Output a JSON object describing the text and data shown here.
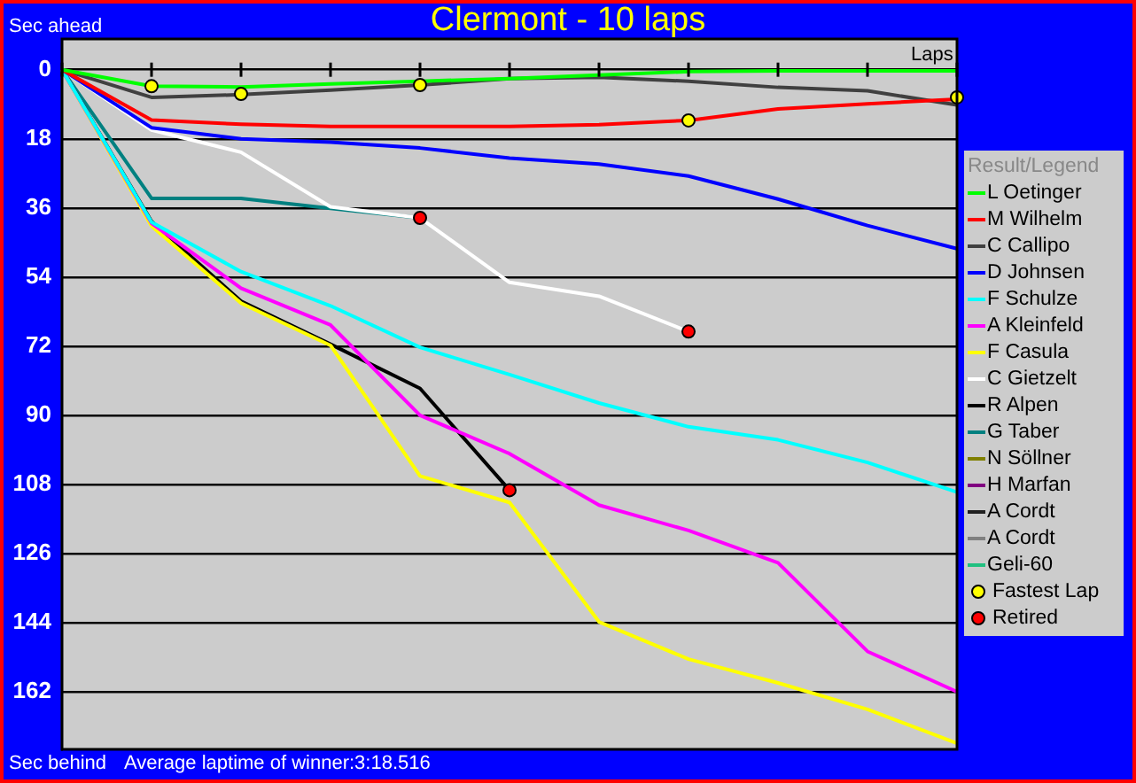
{
  "chart_data": {
    "type": "line",
    "title": "Clermont - 10 laps",
    "xlabel": "Laps",
    "legend_title": "Result/Legend",
    "legend": "right",
    "grid": "y",
    "tick_labels": "y",
    "marker": "none",
    "annotations": [
      "Sec ahead",
      "Sec behind",
      "Average laptime of winner:3:18.516"
    ],
    "categories": [
      null,
      null,
      null,
      null,
      null,
      null,
      null,
      null,
      null,
      null,
      null
    ],
    "ylim": [
      177,
      -8
    ],
    "yticks": [
      0,
      18,
      36,
      54,
      72,
      90,
      108,
      126,
      144,
      162
    ],
    "series": [
      {
        "name": "L Oetinger",
        "color": "#00ff00",
        "values": [
          0,
          4.3,
          4.5,
          3.7,
          3,
          2.3,
          1.4,
          0.5,
          0.3,
          0.3,
          0.3
        ]
      },
      {
        "name": "M Wilhelm",
        "color": "#ff0000",
        "values": [
          0,
          13.1,
          14.2,
          14.8,
          14.8,
          14.8,
          14.3,
          13.2,
          10.2,
          8.9,
          7.7
        ]
      },
      {
        "name": "C Callipo",
        "color": "#404040",
        "values": [
          0,
          7.2,
          6.5,
          5.3,
          4,
          2.3,
          2,
          3,
          4.6,
          5.5,
          9.2
        ]
      },
      {
        "name": "D Johnsen",
        "color": "#0000ff",
        "values": [
          0,
          15.1,
          18,
          18.9,
          20.4,
          23,
          24.6,
          27.7,
          33.7,
          40.6,
          46.6
        ]
      },
      {
        "name": "F Schulze",
        "color": "#00ffff",
        "values": [
          0,
          39.7,
          52.6,
          61.5,
          72.3,
          79.4,
          86.8,
          93,
          96.4,
          102.3,
          110
        ]
      },
      {
        "name": "A Kleinfeld",
        "color": "#ff00ff",
        "values": [
          0,
          40,
          56.9,
          66.5,
          90,
          100,
          113.4,
          120,
          128.4,
          151.5,
          162
        ]
      },
      {
        "name": "F Casula",
        "color": "#ffff00",
        "values": [
          0,
          40.7,
          60.8,
          71.8,
          105.8,
          112.7,
          143.8,
          153.5,
          159.7,
          166.6,
          175.4
        ]
      },
      {
        "name": "C Gietzelt",
        "color": "#ffffff",
        "values": [
          0,
          15.7,
          21.5,
          35.7,
          38.6,
          55.4,
          59,
          68.2,
          null,
          null,
          null
        ]
      },
      {
        "name": "R Alpen",
        "color": "#000000",
        "values": [
          0,
          39.5,
          60.3,
          71.5,
          83,
          109.5,
          null,
          null,
          null,
          null,
          null
        ]
      },
      {
        "name": "G Taber",
        "color": "#008080",
        "values": [
          0,
          33.5,
          33.5,
          36.1,
          38.6,
          null,
          null,
          null,
          null,
          null,
          null
        ]
      },
      {
        "name": "N Söllner",
        "color": "#808000",
        "values": [
          null,
          null,
          null,
          null,
          null,
          null,
          null,
          null,
          null,
          null,
          null
        ]
      },
      {
        "name": "H Marfan",
        "color": "#800080",
        "values": [
          null,
          null,
          null,
          null,
          null,
          null,
          null,
          null,
          null,
          null,
          null
        ]
      },
      {
        "name": "A Cordt",
        "color": "#202020",
        "values": [
          null,
          null,
          null,
          null,
          null,
          null,
          null,
          null,
          null,
          null,
          null
        ]
      },
      {
        "name": "A Cordt",
        "color": "#808080",
        "values": [
          null,
          null,
          null,
          null,
          null,
          null,
          null,
          null,
          null,
          null,
          null
        ]
      },
      {
        "name": "Geli-60",
        "color": "#20c080",
        "values": [
          null,
          null,
          null,
          null,
          null,
          null,
          null,
          null,
          null,
          null,
          null
        ]
      },
      {
        "name": "Fastest Lap",
        "type": "scatter",
        "marker": "circle",
        "color": "#ffff00",
        "values": [
          null,
          4.3,
          6.3,
          null,
          4,
          null,
          null,
          13.2,
          null,
          null,
          7.2
        ]
      },
      {
        "name": "Retired",
        "type": "scatter",
        "marker": "circle",
        "color": "#ff0000",
        "values": [
          null,
          null,
          null,
          null,
          38.6,
          109.5,
          null,
          68.2,
          null,
          null,
          null
        ]
      }
    ]
  }
}
